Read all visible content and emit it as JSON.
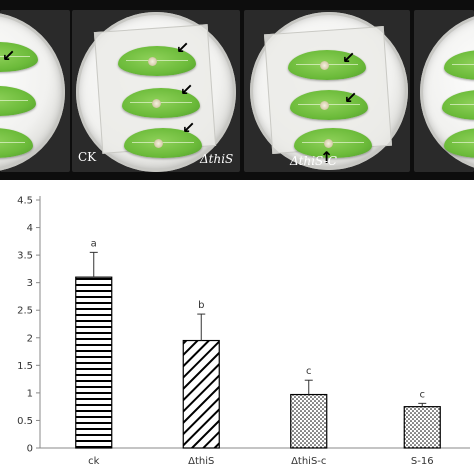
{
  "photos": {
    "labels": [
      "CK",
      "ΔthiS",
      "ΔthiS-C"
    ]
  },
  "chart_data": {
    "type": "bar",
    "categories": [
      "ck",
      "ΔthiS",
      "ΔthiS-c",
      "S-16"
    ],
    "categories_display": [
      "ck",
      "ΔthiS",
      "ΔthiS-c",
      "S-16"
    ],
    "values": [
      3.1,
      1.95,
      0.97,
      0.75
    ],
    "errors": [
      0.45,
      0.48,
      0.26,
      0.06
    ],
    "significance": [
      "a",
      "b",
      "c",
      "c"
    ],
    "patterns": [
      "horizontal-stripes",
      "diagonal-stripes",
      "dots",
      "dots"
    ],
    "title": "",
    "xlabel": "",
    "ylabel": "",
    "ylim": [
      0,
      4.5
    ],
    "yticks": [
      "0",
      "0.5",
      "1",
      "1.5",
      "2",
      "2.5",
      "3",
      "3.5",
      "4",
      "4.5"
    ],
    "grid": false
  }
}
